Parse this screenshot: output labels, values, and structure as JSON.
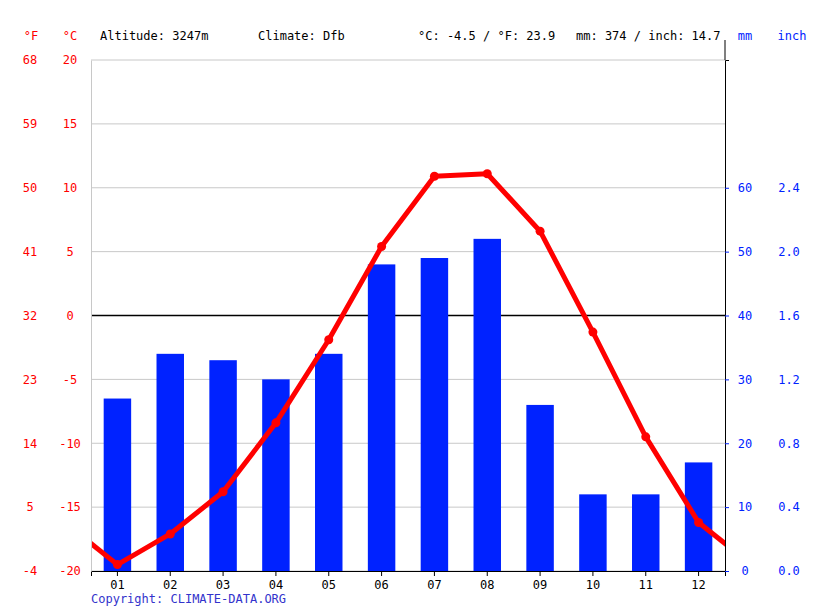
{
  "chart_data": {
    "type": "bar",
    "header": [
      "Altitude: 3247m",
      "Climate: Dfb",
      "°C: -4.5 / °F: 23.9",
      "mm: 374 / inch: 14.7"
    ],
    "y_label": "°C",
    "y_label_f": "°F",
    "y2_label": "mm",
    "y2_label_inch": "inch",
    "copyright": "Copyright: CLIMATE-DATA.ORG",
    "categories": [
      "01",
      "02",
      "03",
      "04",
      "05",
      "06",
      "07",
      "08",
      "09",
      "10",
      "11",
      "12"
    ],
    "series": [
      {
        "type": "line",
        "color": "#ff0000",
        "marker": "circle",
        "values": [
          -19.5,
          -17.1,
          -13.8,
          -8.4,
          -1.9,
          5.4,
          10.9,
          11.1,
          6.6,
          -1.3,
          -9.5,
          -16.2
        ]
      },
      {
        "type": "bar",
        "axis": "y2",
        "color": "#0022ff",
        "values": [
          27,
          34,
          33,
          30,
          34,
          48,
          49,
          52,
          26,
          12,
          12,
          17
        ]
      }
    ],
    "ylim": [
      -20,
      20
    ],
    "yticks": [
      -20,
      -15,
      -10,
      -5,
      0,
      5,
      10,
      15,
      20
    ],
    "y_fahrenheit_ticks": [
      {
        "value": -20,
        "label": "-4"
      },
      {
        "value": -15,
        "label": "5"
      },
      {
        "value": -10,
        "label": "14"
      },
      {
        "value": -5,
        "label": "23"
      },
      {
        "value": 0,
        "label": "32"
      },
      {
        "value": 5,
        "label": "41"
      },
      {
        "value": 10,
        "label": "50"
      },
      {
        "value": 15,
        "label": "59"
      },
      {
        "value": 20,
        "label": "68"
      }
    ],
    "y2lim": [
      0,
      80
    ],
    "y2ticks": [
      0,
      10,
      20,
      30,
      40,
      50,
      60
    ],
    "y2_inch_ticks": [
      {
        "value": 0,
        "label": "0.0"
      },
      {
        "value": 10,
        "label": "0.4"
      },
      {
        "value": 20,
        "label": "0.8"
      },
      {
        "value": 30,
        "label": "1.2"
      },
      {
        "value": 40,
        "label": "1.6"
      },
      {
        "value": 50,
        "label": "2.0"
      },
      {
        "value": 60,
        "label": "2.4"
      }
    ],
    "grid": true
  }
}
